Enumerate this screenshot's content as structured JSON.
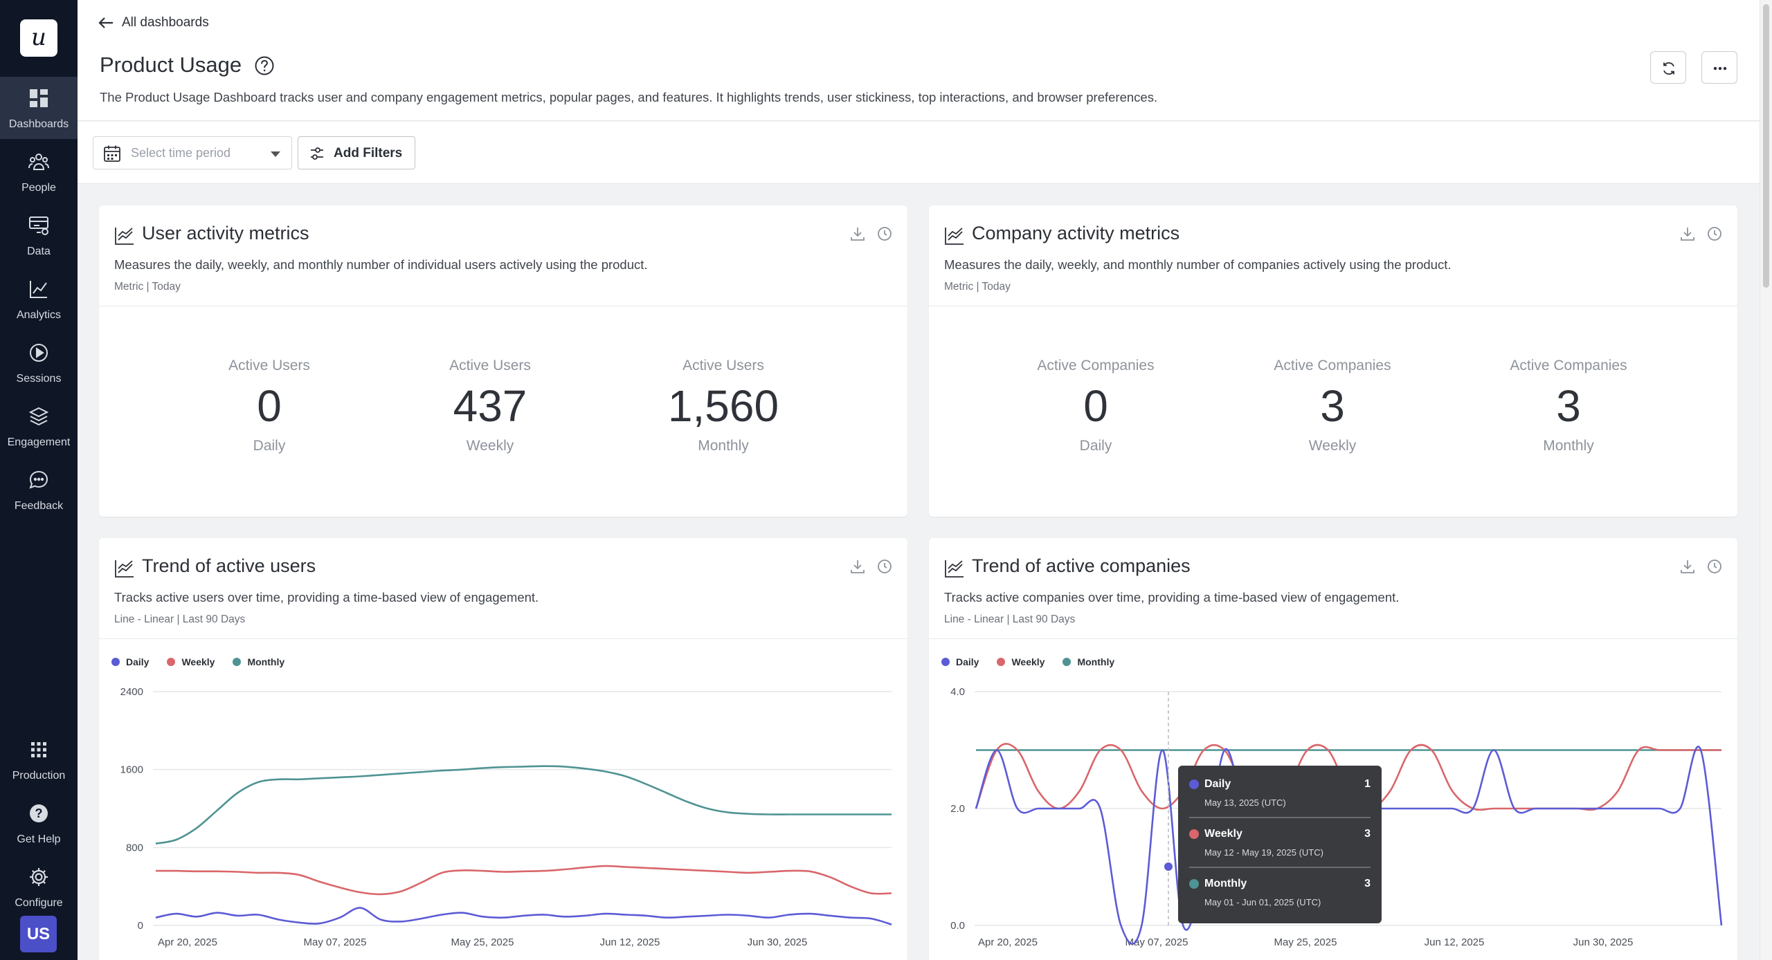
{
  "sidebar": {
    "logo": "u",
    "items": [
      {
        "label": "Dashboards"
      },
      {
        "label": "People"
      },
      {
        "label": "Data"
      },
      {
        "label": "Analytics"
      },
      {
        "label": "Sessions"
      },
      {
        "label": "Engagement"
      },
      {
        "label": "Feedback"
      }
    ],
    "bottom": [
      {
        "label": "Production"
      },
      {
        "label": "Get Help"
      },
      {
        "label": "Configure"
      }
    ],
    "avatar": "US"
  },
  "header": {
    "back_label": "All dashboards",
    "title": "Product Usage",
    "description": "The Product Usage Dashboard tracks user and company engagement metrics, popular pages, and features. It highlights trends, user stickiness, top interactions, and browser preferences."
  },
  "filters": {
    "period_placeholder": "Select time period",
    "add_filters_label": "Add Filters"
  },
  "cards": {
    "user_metrics": {
      "title": "User activity metrics",
      "description": "Measures the daily, weekly, and monthly number of individual users actively using the product.",
      "meta": "Metric | Today",
      "metrics": [
        {
          "title": "Active Users",
          "value": "0",
          "period": "Daily"
        },
        {
          "title": "Active Users",
          "value": "437",
          "period": "Weekly"
        },
        {
          "title": "Active Users",
          "value": "1,560",
          "period": "Monthly"
        }
      ]
    },
    "company_metrics": {
      "title": "Company activity metrics",
      "description": "Measures the daily, weekly, and monthly number of companies actively using the product.",
      "meta": "Metric | Today",
      "metrics": [
        {
          "title": "Active Companies",
          "value": "0",
          "period": "Daily"
        },
        {
          "title": "Active Companies",
          "value": "3",
          "period": "Weekly"
        },
        {
          "title": "Active Companies",
          "value": "3",
          "period": "Monthly"
        }
      ]
    },
    "trend_users": {
      "title": "Trend of active users",
      "description": "Tracks active users over time, providing a time-based view of engagement.",
      "meta": "Line - Linear | Last 90 Days"
    },
    "trend_companies": {
      "title": "Trend of active companies",
      "description": "Tracks active companies over time, providing a time-based view of engagement.",
      "meta": "Line - Linear | Last 90 Days"
    }
  },
  "legend": [
    {
      "name": "Daily",
      "color": "#5b5bd6"
    },
    {
      "name": "Weekly",
      "color": "#d9666a"
    },
    {
      "name": "Monthly",
      "color": "#4f9393"
    }
  ],
  "tooltip": {
    "rows": [
      {
        "name": "Daily",
        "value": "1",
        "range": "May 13, 2025 (UTC)"
      },
      {
        "name": "Weekly",
        "value": "3",
        "range": "May 12 - May 19, 2025 (UTC)"
      },
      {
        "name": "Monthly",
        "value": "3",
        "range": "May 01 - Jun 01, 2025 (UTC)"
      }
    ]
  },
  "chart_data": [
    {
      "type": "line",
      "title": "Trend of active users",
      "x_ticks": [
        "Apr 20, 2025",
        "May 07, 2025",
        "May 25, 2025",
        "Jun 12, 2025",
        "Jun 30, 2025"
      ],
      "y_ticks": [
        "0",
        "800",
        "1600",
        "2400"
      ],
      "ylim": [
        0,
        2400
      ],
      "grid": true,
      "legend": "top-left",
      "series": [
        {
          "name": "Monthly",
          "color": "#4f9393",
          "values": [
            840,
            880,
            1000,
            1180,
            1360,
            1470,
            1500,
            1500,
            1510,
            1520,
            1530,
            1545,
            1560,
            1575,
            1590,
            1600,
            1615,
            1625,
            1630,
            1635,
            1630,
            1610,
            1580,
            1530,
            1450,
            1360,
            1270,
            1200,
            1160,
            1145,
            1140,
            1140,
            1140,
            1140,
            1140,
            1140,
            1140
          ]
        },
        {
          "name": "Weekly",
          "color": "#d9666a",
          "values": [
            560,
            560,
            555,
            555,
            550,
            540,
            540,
            520,
            450,
            390,
            340,
            320,
            350,
            440,
            540,
            565,
            560,
            550,
            555,
            560,
            575,
            595,
            610,
            600,
            590,
            580,
            570,
            560,
            550,
            540,
            550,
            560,
            555,
            495,
            400,
            330,
            330
          ]
        },
        {
          "name": "Daily",
          "color": "#5b5bd6",
          "values": [
            80,
            120,
            90,
            130,
            100,
            110,
            60,
            30,
            20,
            80,
            180,
            60,
            40,
            70,
            110,
            130,
            90,
            80,
            100,
            110,
            90,
            100,
            120,
            110,
            100,
            80,
            90,
            100,
            110,
            100,
            80,
            110,
            120,
            100,
            80,
            70,
            10
          ]
        }
      ]
    },
    {
      "type": "line",
      "title": "Trend of active companies",
      "x_ticks": [
        "Apr 20, 2025",
        "May 07, 2025",
        "May 25, 2025",
        "Jun 12, 2025",
        "Jun 30, 2025"
      ],
      "y_ticks": [
        "0.0",
        "2.0",
        "4.0"
      ],
      "ylim": [
        0,
        4
      ],
      "grid": true,
      "legend": "top-left",
      "series": [
        {
          "name": "Monthly",
          "color": "#4f9393",
          "values": [
            3,
            3,
            3,
            3,
            3,
            3,
            3,
            3,
            3,
            3,
            3,
            3,
            3,
            3,
            3,
            3,
            3,
            3,
            3,
            3,
            3,
            3,
            3,
            3,
            3,
            3,
            3,
            3,
            3,
            3,
            3,
            3,
            3,
            3,
            3,
            3,
            3
          ]
        },
        {
          "name": "Weekly",
          "color": "#d9666a",
          "values": [
            2,
            3,
            3,
            2.3,
            2,
            2.3,
            3,
            3,
            2.3,
            2,
            2.3,
            3,
            3,
            2.3,
            2,
            2.3,
            3,
            3,
            2.3,
            2,
            2.3,
            3,
            3,
            2.3,
            2,
            2,
            2,
            2,
            2,
            2,
            2,
            2.3,
            3,
            3,
            3,
            3,
            3
          ]
        },
        {
          "name": "Daily",
          "color": "#5b5bd6",
          "values": [
            2,
            3,
            2,
            2,
            2,
            2,
            2,
            0,
            0,
            3,
            0,
            1,
            3,
            2,
            2,
            2,
            2,
            2,
            2,
            2,
            2,
            2,
            2,
            2,
            2,
            3,
            2,
            2,
            2,
            2,
            2,
            2,
            2,
            2,
            2,
            3,
            0
          ]
        }
      ]
    }
  ]
}
